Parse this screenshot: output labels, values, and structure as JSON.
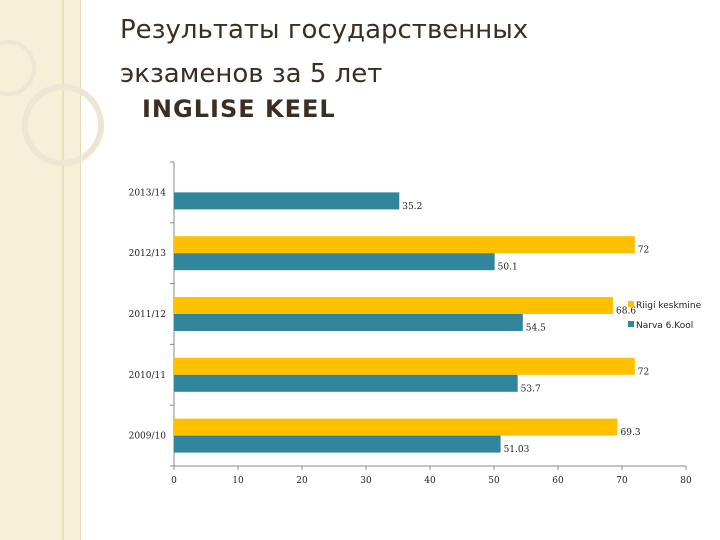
{
  "slide": {
    "title_line1": "Результаты государственных",
    "title_line2": "экзаменов за 5 лет",
    "subtitle": "INGLISE KEEL"
  },
  "chart_data": {
    "type": "bar",
    "orientation": "horizontal",
    "categories": [
      "2013/14",
      "2012/13",
      "2011/12",
      "2010/11",
      "2009/10"
    ],
    "series": [
      {
        "name": "Riigi keskmine",
        "color": "#ffc000",
        "values": [
          null,
          72,
          68.6,
          72,
          69.3
        ]
      },
      {
        "name": "Narva 6.Kool",
        "color": "#31859c",
        "values": [
          35.2,
          50.1,
          54.5,
          53.7,
          51.03
        ]
      }
    ],
    "data_labels": {
      "Riigi keskmine": [
        "",
        "72",
        "68.6",
        "72",
        "69.3"
      ],
      "Narva 6.Kool": [
        "35.2",
        "50.1",
        "54.5",
        "53.7",
        "51.03"
      ]
    },
    "xticks": [
      "0",
      "10",
      "20",
      "30",
      "40",
      "50",
      "60",
      "70",
      "80"
    ],
    "xlim": [
      0,
      80
    ],
    "grid": false,
    "legend_position": "right"
  }
}
